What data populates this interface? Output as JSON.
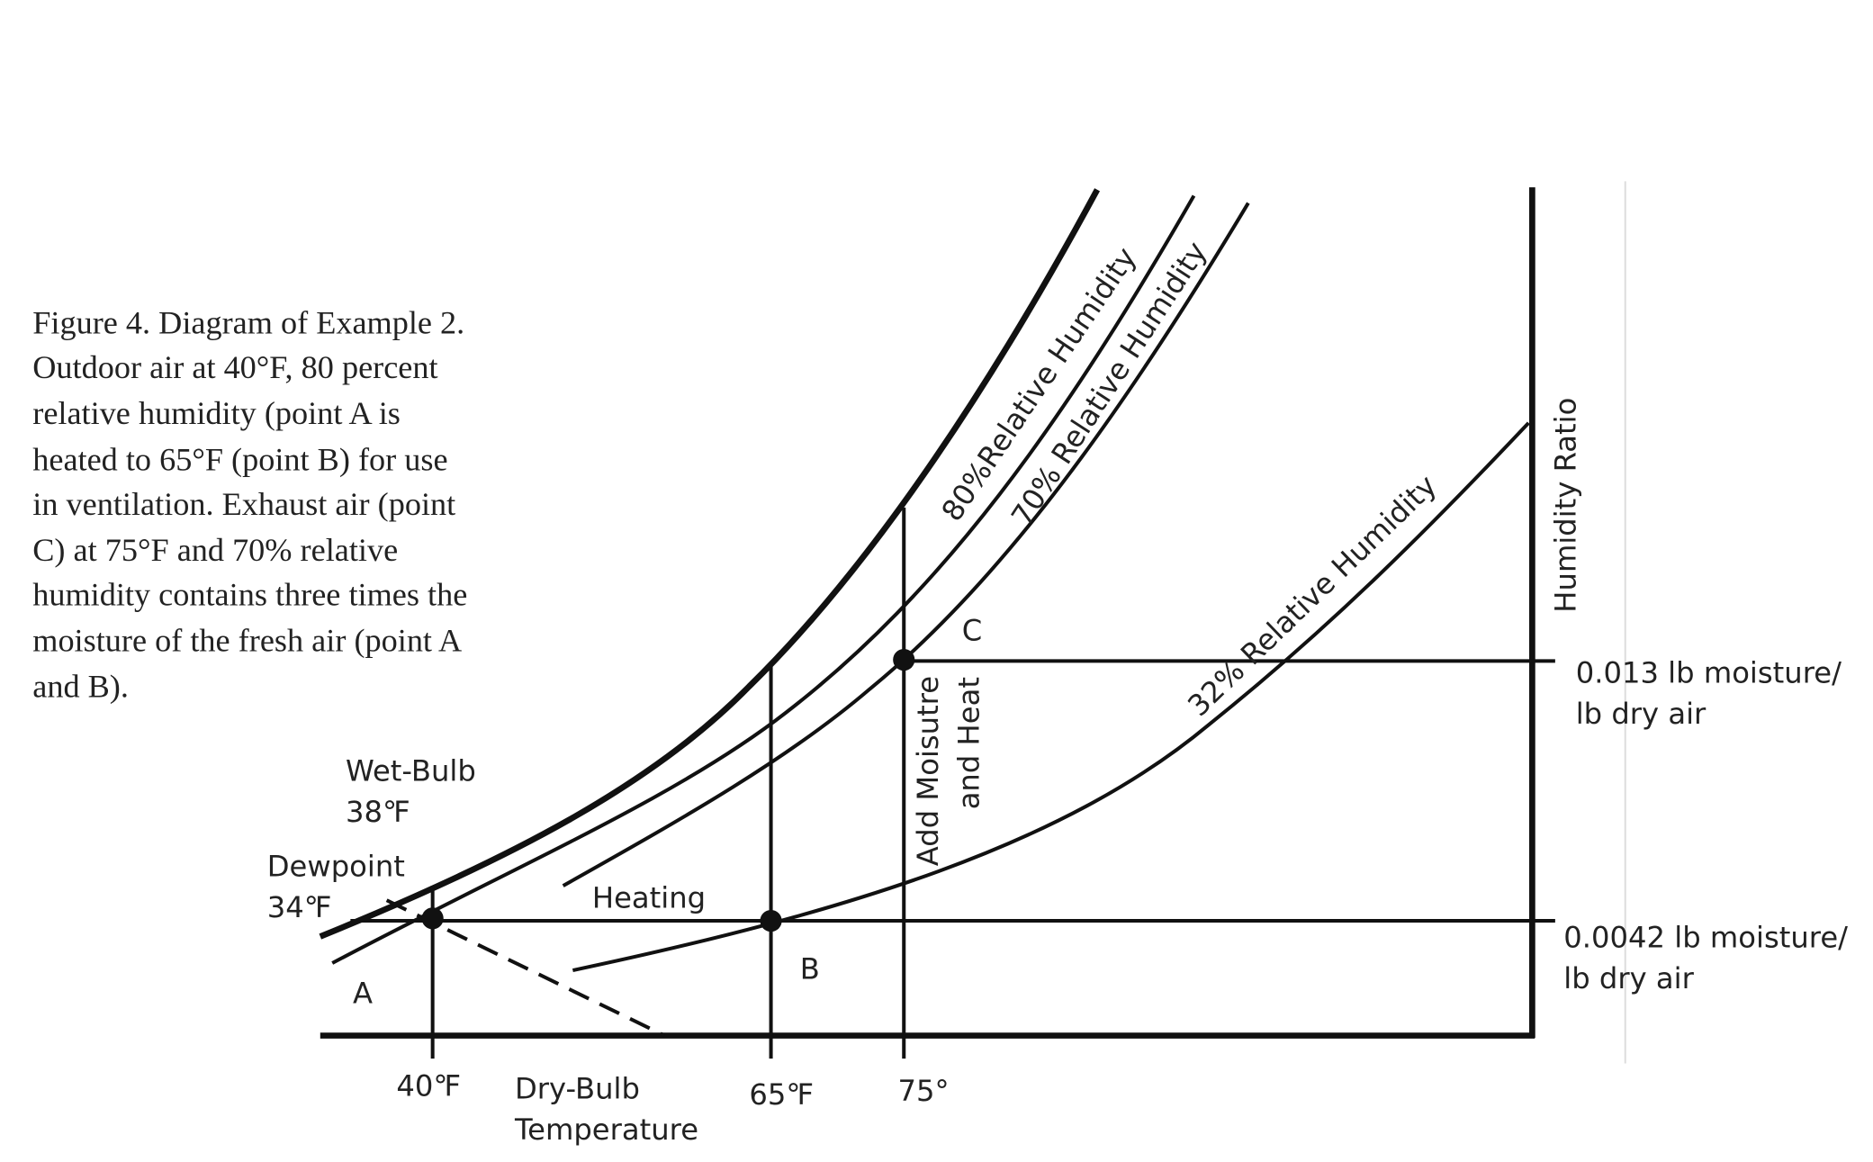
{
  "caption": {
    "lines": [
      "Figure 4. Diagram of Example 2.",
      "Outdoor air at 40°F, 80 percent",
      "relative humidity (point A is",
      "heated to 65°F (point B) for use",
      "in ventilation. Exhaust air (point",
      "C) at 75°F and 70% relative",
      "humidity contains three times the",
      "moisture of the fresh air (point A",
      "and B)."
    ]
  },
  "curves": [
    {
      "label": "80%Relative Humidity"
    },
    {
      "label": "70% Relative Humidity"
    },
    {
      "label": "32% Relative Humidity"
    }
  ],
  "points": [
    {
      "label": "A"
    },
    {
      "label": "B"
    },
    {
      "label": "C"
    }
  ],
  "labels": {
    "wet_bulb": [
      "Wet-Bulb",
      "38℉"
    ],
    "dewpoint": [
      "Dewpoint",
      "34℉"
    ],
    "heating": "Heating",
    "add_moisture": [
      "Add Moisutre",
      "and Heat"
    ]
  },
  "x_axis": {
    "title": [
      "Dry-Bulb",
      "Temperature"
    ],
    "ticks": [
      "40℉",
      "65℉",
      "75°"
    ]
  },
  "y_axis": {
    "title": "Humidity Ratio",
    "levels": [
      [
        "0.013 lb moisture/",
        "lb dry air"
      ],
      [
        "0.0042 lb moisture/",
        "lb dry air"
      ]
    ]
  }
}
